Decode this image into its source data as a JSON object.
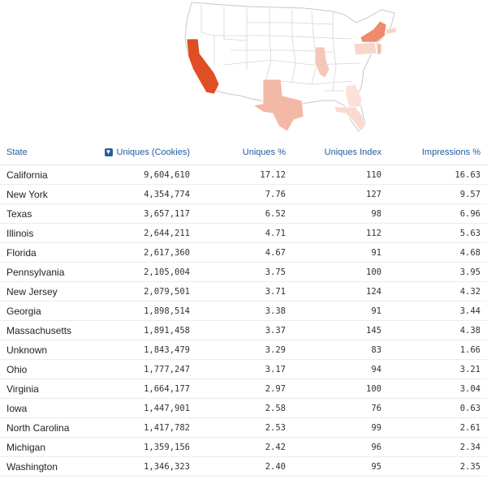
{
  "map": {
    "colors": {
      "base": "#ffffff",
      "border": "#c8c8c8",
      "california": "#e04e24",
      "new_york": "#ee8a6e",
      "texas": "#f4b8a6",
      "illinois": "#f6c6b8",
      "pennsylvania": "#f8d6cb",
      "florida": "#fad9cf",
      "georgia": "#fbe1d8",
      "new_jersey": "#f4bba9",
      "massachusetts": "#f8d2c6"
    }
  },
  "table": {
    "headers": {
      "state": "State",
      "uniques": "Uniques (Cookies)",
      "uniques_pct": "Uniques %",
      "uniques_index": "Uniques Index",
      "impressions_pct": "Impressions %"
    },
    "sort_icon": "sort-desc-icon",
    "rows": [
      {
        "state": "California",
        "uniques": "9,604,610",
        "pct": "17.12",
        "index": "110",
        "imp": "16.63"
      },
      {
        "state": "New York",
        "uniques": "4,354,774",
        "pct": "7.76",
        "index": "127",
        "imp": "9.57"
      },
      {
        "state": "Texas",
        "uniques": "3,657,117",
        "pct": "6.52",
        "index": "98",
        "imp": "6.96"
      },
      {
        "state": "Illinois",
        "uniques": "2,644,211",
        "pct": "4.71",
        "index": "112",
        "imp": "5.63"
      },
      {
        "state": "Florida",
        "uniques": "2,617,360",
        "pct": "4.67",
        "index": "91",
        "imp": "4.68"
      },
      {
        "state": "Pennsylvania",
        "uniques": "2,105,004",
        "pct": "3.75",
        "index": "100",
        "imp": "3.95"
      },
      {
        "state": "New Jersey",
        "uniques": "2,079,501",
        "pct": "3.71",
        "index": "124",
        "imp": "4.32"
      },
      {
        "state": "Georgia",
        "uniques": "1,898,514",
        "pct": "3.38",
        "index": "91",
        "imp": "3.44"
      },
      {
        "state": "Massachusetts",
        "uniques": "1,891,458",
        "pct": "3.37",
        "index": "145",
        "imp": "4.38"
      },
      {
        "state": "Unknown",
        "uniques": "1,843,479",
        "pct": "3.29",
        "index": "83",
        "imp": "1.66"
      },
      {
        "state": "Ohio",
        "uniques": "1,777,247",
        "pct": "3.17",
        "index": "94",
        "imp": "3.21"
      },
      {
        "state": "Virginia",
        "uniques": "1,664,177",
        "pct": "2.97",
        "index": "100",
        "imp": "3.04"
      },
      {
        "state": "Iowa",
        "uniques": "1,447,901",
        "pct": "2.58",
        "index": "76",
        "imp": "0.63"
      },
      {
        "state": "North Carolina",
        "uniques": "1,417,782",
        "pct": "2.53",
        "index": "99",
        "imp": "2.61"
      },
      {
        "state": "Michigan",
        "uniques": "1,359,156",
        "pct": "2.42",
        "index": "96",
        "imp": "2.34"
      },
      {
        "state": "Washington",
        "uniques": "1,346,323",
        "pct": "2.40",
        "index": "95",
        "imp": "2.35"
      }
    ]
  }
}
